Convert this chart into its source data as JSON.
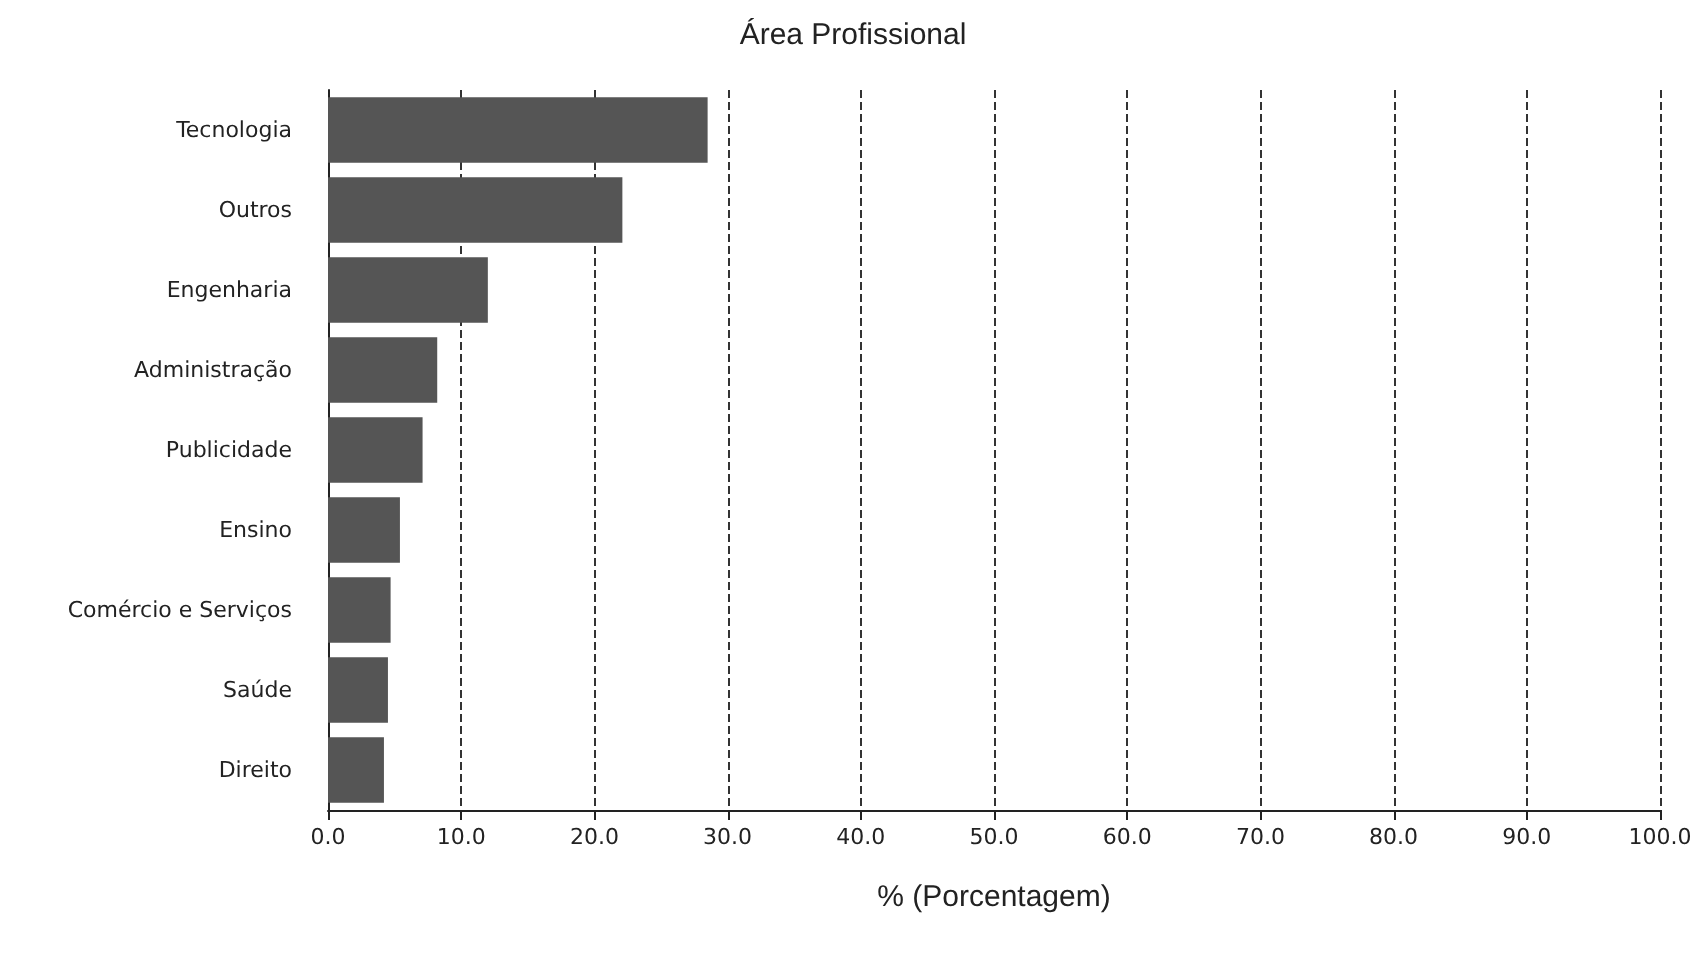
{
  "chart_data": {
    "type": "bar",
    "orientation": "horizontal",
    "title": "Área Profissional",
    "xlabel": "% (Porcentagem)",
    "categories": [
      "Tecnologia",
      "Outros",
      "Engenharia",
      "Administração",
      "Publicidade",
      "Ensino",
      "Comércio e Serviços",
      "Saúde",
      "Direito"
    ],
    "values": [
      28.5,
      22.1,
      12.0,
      8.2,
      7.1,
      5.4,
      4.7,
      4.5,
      4.2
    ],
    "color": "#555555",
    "xlim": [
      0,
      100
    ],
    "xticks": [
      {
        "value": 0,
        "label": "0.0"
      },
      {
        "value": 10,
        "label": "10.0"
      },
      {
        "value": 20,
        "label": "20.0"
      },
      {
        "value": 30,
        "label": "30.0"
      },
      {
        "value": 40,
        "label": "40.0"
      },
      {
        "value": 50,
        "label": "50.0"
      },
      {
        "value": 60,
        "label": "60.0"
      },
      {
        "value": 70,
        "label": "70.0"
      },
      {
        "value": 80,
        "label": "80.0"
      },
      {
        "value": 90,
        "label": "90.0"
      },
      {
        "value": 100,
        "label": "100.0"
      }
    ],
    "grid": "x",
    "line_style": "dashed"
  }
}
